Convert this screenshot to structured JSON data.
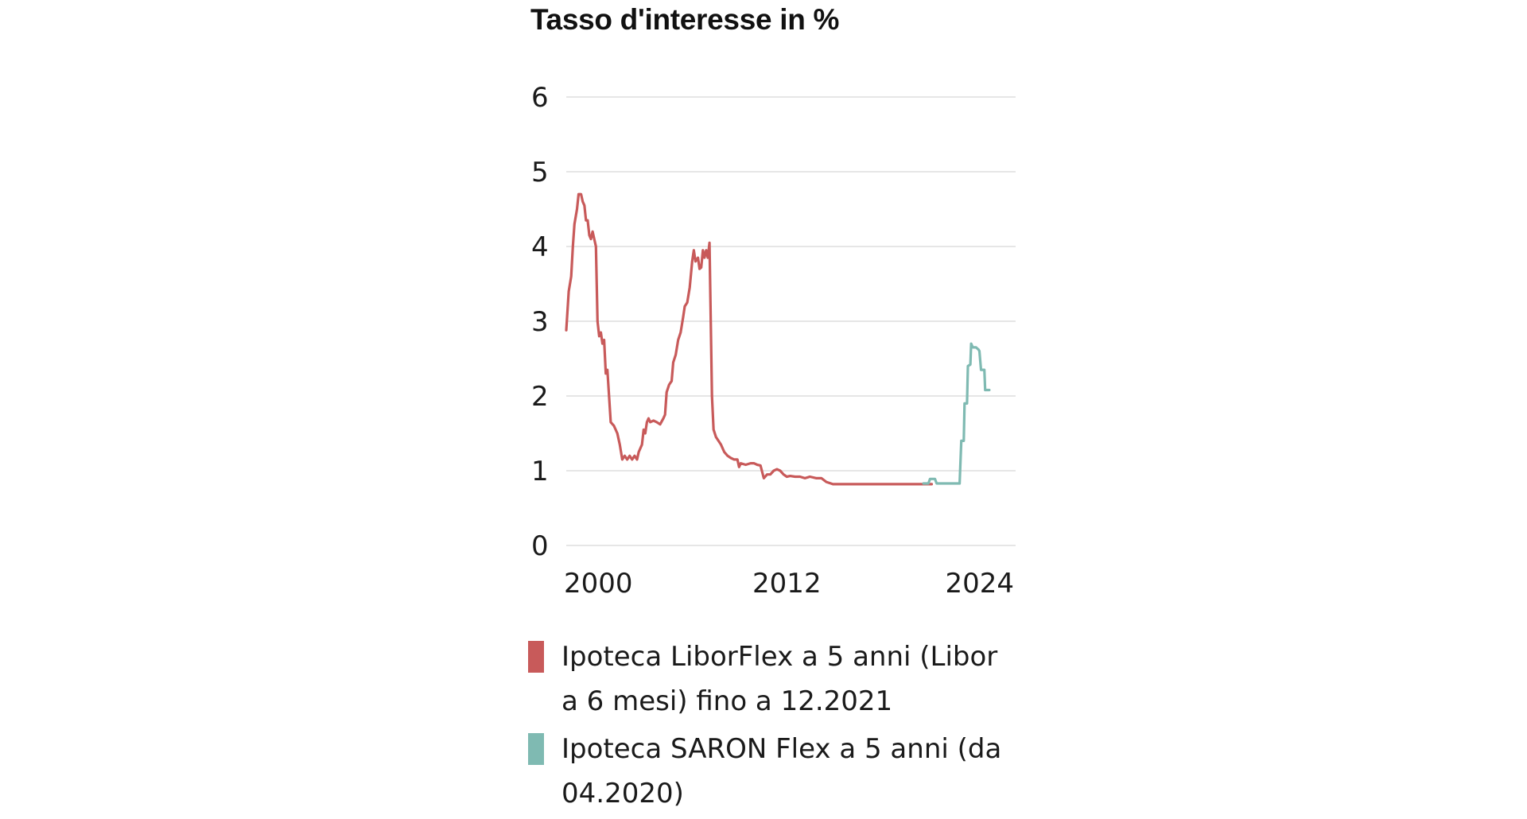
{
  "chart_data": {
    "type": "line",
    "title": "Tasso d'interesse in %",
    "xlabel": "",
    "ylabel": "",
    "xlim": [
      1998.6,
      2025.9
    ],
    "ylim": [
      0,
      6
    ],
    "yticks": [
      "0",
      "1",
      "2",
      "3",
      "4",
      "5",
      "6"
    ],
    "xticks": [
      "2000",
      "2012",
      "2024"
    ],
    "grid": true,
    "legend_position": "bottom",
    "series": [
      {
        "name": "Ipoteca LiborFlex a 5 anni (Libor a 6 mesi) fino a 12.2021",
        "color": "#c85a5a",
        "points": [
          [
            1998.6,
            2.88
          ],
          [
            1998.75,
            3.4
          ],
          [
            1998.9,
            3.6
          ],
          [
            1999.0,
            4.0
          ],
          [
            1999.1,
            4.3
          ],
          [
            1999.25,
            4.5
          ],
          [
            1999.35,
            4.7
          ],
          [
            1999.5,
            4.7
          ],
          [
            1999.6,
            4.6
          ],
          [
            1999.7,
            4.55
          ],
          [
            1999.8,
            4.35
          ],
          [
            1999.9,
            4.35
          ],
          [
            2000.0,
            4.15
          ],
          [
            2000.1,
            4.1
          ],
          [
            2000.2,
            4.2
          ],
          [
            2000.3,
            4.1
          ],
          [
            2000.4,
            4.0
          ],
          [
            2000.5,
            3.0
          ],
          [
            2000.6,
            2.8
          ],
          [
            2000.7,
            2.85
          ],
          [
            2000.8,
            2.7
          ],
          [
            2000.9,
            2.75
          ],
          [
            2001.0,
            2.3
          ],
          [
            2001.1,
            2.35
          ],
          [
            2001.2,
            2.0
          ],
          [
            2001.3,
            1.65
          ],
          [
            2001.5,
            1.6
          ],
          [
            2001.7,
            1.5
          ],
          [
            2001.85,
            1.35
          ],
          [
            2002.0,
            1.15
          ],
          [
            2002.15,
            1.2
          ],
          [
            2002.3,
            1.15
          ],
          [
            2002.45,
            1.2
          ],
          [
            2002.6,
            1.15
          ],
          [
            2002.75,
            1.2
          ],
          [
            2002.9,
            1.15
          ],
          [
            2003.0,
            1.25
          ],
          [
            2003.2,
            1.35
          ],
          [
            2003.3,
            1.55
          ],
          [
            2003.4,
            1.5
          ],
          [
            2003.5,
            1.65
          ],
          [
            2003.6,
            1.7
          ],
          [
            2003.7,
            1.65
          ],
          [
            2003.9,
            1.67
          ],
          [
            2004.1,
            1.65
          ],
          [
            2004.3,
            1.62
          ],
          [
            2004.5,
            1.7
          ],
          [
            2004.6,
            1.75
          ],
          [
            2004.7,
            2.05
          ],
          [
            2004.85,
            2.15
          ],
          [
            2005.0,
            2.2
          ],
          [
            2005.1,
            2.45
          ],
          [
            2005.25,
            2.55
          ],
          [
            2005.4,
            2.75
          ],
          [
            2005.55,
            2.85
          ],
          [
            2005.7,
            3.05
          ],
          [
            2005.8,
            3.2
          ],
          [
            2005.95,
            3.25
          ],
          [
            2006.1,
            3.45
          ],
          [
            2006.25,
            3.8
          ],
          [
            2006.35,
            3.95
          ],
          [
            2006.45,
            3.8
          ],
          [
            2006.6,
            3.85
          ],
          [
            2006.7,
            3.7
          ],
          [
            2006.8,
            3.72
          ],
          [
            2006.9,
            3.95
          ],
          [
            2007.0,
            3.85
          ],
          [
            2007.1,
            3.95
          ],
          [
            2007.2,
            3.85
          ],
          [
            2007.3,
            4.05
          ],
          [
            2007.45,
            2.0
          ],
          [
            2007.55,
            1.55
          ],
          [
            2007.7,
            1.45
          ],
          [
            2007.85,
            1.4
          ],
          [
            2008.0,
            1.35
          ],
          [
            2008.2,
            1.25
          ],
          [
            2008.4,
            1.2
          ],
          [
            2008.6,
            1.17
          ],
          [
            2008.8,
            1.15
          ],
          [
            2009.0,
            1.15
          ],
          [
            2009.1,
            1.05
          ],
          [
            2009.2,
            1.1
          ],
          [
            2009.5,
            1.08
          ],
          [
            2009.8,
            1.1
          ],
          [
            2010.0,
            1.1
          ],
          [
            2010.2,
            1.08
          ],
          [
            2010.4,
            1.07
          ],
          [
            2010.6,
            0.9
          ],
          [
            2010.8,
            0.95
          ],
          [
            2011.0,
            0.95
          ],
          [
            2011.2,
            1.0
          ],
          [
            2011.4,
            1.02
          ],
          [
            2011.6,
            1.0
          ],
          [
            2011.8,
            0.95
          ],
          [
            2012.0,
            0.92
          ],
          [
            2012.2,
            0.93
          ],
          [
            2012.5,
            0.92
          ],
          [
            2012.8,
            0.92
          ],
          [
            2013.1,
            0.9
          ],
          [
            2013.4,
            0.92
          ],
          [
            2013.8,
            0.9
          ],
          [
            2014.1,
            0.9
          ],
          [
            2014.4,
            0.85
          ],
          [
            2014.8,
            0.82
          ],
          [
            2015.2,
            0.82
          ],
          [
            2016.0,
            0.82
          ],
          [
            2017.0,
            0.82
          ],
          [
            2018.0,
            0.82
          ],
          [
            2019.0,
            0.82
          ],
          [
            2020.0,
            0.82
          ],
          [
            2020.8,
            0.82
          ]
        ]
      },
      {
        "name": "Ipoteca SARON Flex a 5 anni (da 04.2020)",
        "color": "#7fbab2",
        "points": [
          [
            2020.3,
            0.83
          ],
          [
            2020.6,
            0.83
          ],
          [
            2020.7,
            0.89
          ],
          [
            2021.0,
            0.89
          ],
          [
            2021.1,
            0.83
          ],
          [
            2021.5,
            0.83
          ],
          [
            2022.0,
            0.83
          ],
          [
            2022.5,
            0.83
          ],
          [
            2022.6,
            1.4
          ],
          [
            2022.75,
            1.4
          ],
          [
            2022.8,
            1.9
          ],
          [
            2022.95,
            1.9
          ],
          [
            2023.0,
            2.4
          ],
          [
            2023.15,
            2.42
          ],
          [
            2023.2,
            2.7
          ],
          [
            2023.3,
            2.65
          ],
          [
            2023.5,
            2.65
          ],
          [
            2023.65,
            2.62
          ],
          [
            2023.7,
            2.6
          ],
          [
            2023.8,
            2.35
          ],
          [
            2024.0,
            2.35
          ],
          [
            2024.05,
            2.08
          ],
          [
            2024.3,
            2.08
          ]
        ]
      }
    ]
  }
}
